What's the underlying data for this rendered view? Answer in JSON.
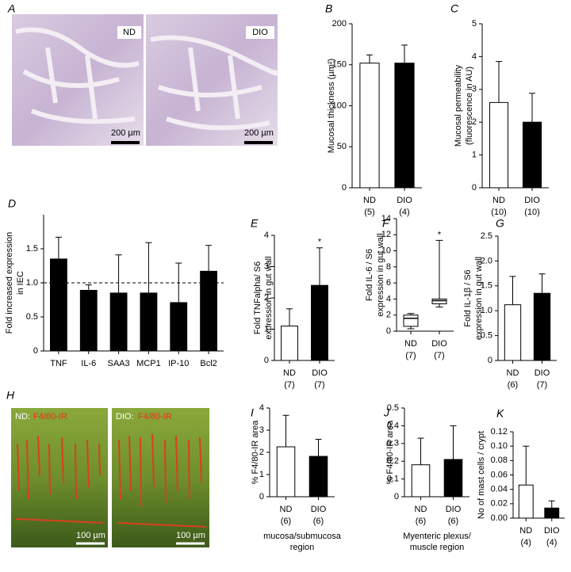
{
  "image_panels": [
    {
      "letter": "A",
      "images": [
        {
          "label": "ND",
          "scale_bar": "200 µm"
        },
        {
          "label": "DIO",
          "scale_bar": "200 µm"
        }
      ]
    },
    {
      "letter": "H",
      "images": [
        {
          "label": "ND:",
          "stain": "F4/80-IR",
          "scale_bar": "100 µm"
        },
        {
          "label": "DIO:",
          "stain": "F4/80-IR",
          "scale_bar": "100 µm"
        }
      ]
    }
  ],
  "chart_data": [
    {
      "type": "bar",
      "letter": "B",
      "ylabel": [
        "Mucosal thickness (µm²)"
      ],
      "categories": [
        "ND",
        "DIO"
      ],
      "n": [
        "(5)",
        "(4)"
      ],
      "values": [
        152,
        152
      ],
      "errors": [
        10,
        22
      ],
      "colors": [
        "#ffffff",
        "#000000"
      ],
      "ylim": [
        0,
        200
      ],
      "yticks": [
        0,
        50,
        100,
        150,
        200
      ]
    },
    {
      "type": "bar",
      "letter": "C",
      "ylabel": [
        "Mucosal permeability",
        "(fluorescence in AU)"
      ],
      "categories": [
        "ND",
        "DIO"
      ],
      "n": [
        "(10)",
        "(10)"
      ],
      "values": [
        2.6,
        2.0
      ],
      "errors": [
        1.25,
        0.88
      ],
      "colors": [
        "#ffffff",
        "#000000"
      ],
      "ylim": [
        0,
        5
      ],
      "yticks": [
        0,
        1,
        2,
        3,
        4,
        5
      ]
    },
    {
      "type": "bar",
      "letter": "D",
      "ylabel": [
        "Fold increased expression",
        "in IEC"
      ],
      "categories": [
        "TNF",
        "IL-6",
        "SAA3",
        "MCP1",
        "IP-10",
        "Bcl2"
      ],
      "values": [
        1.35,
        0.89,
        0.85,
        0.85,
        0.71,
        1.17
      ],
      "errors": [
        0.32,
        0.08,
        0.56,
        0.74,
        0.58,
        0.38
      ],
      "color": "#000000",
      "ylim": [
        0,
        2
      ],
      "yticks": [
        0,
        0.5,
        {
          "value": 1,
          "label": "1.0"
        },
        1.5
      ],
      "reference_line": 1
    },
    {
      "type": "bar",
      "letter": "E",
      "ylabel": [
        "Fold TNFalpha/ S6",
        "expression in gut wall"
      ],
      "categories": [
        "ND",
        "DIO"
      ],
      "n": [
        "(7)",
        "(7)"
      ],
      "values": [
        1.1,
        2.4
      ],
      "errors": [
        0.55,
        1.2
      ],
      "colors": [
        "#ffffff",
        "#000000"
      ],
      "ylim": [
        0,
        4
      ],
      "yticks": [
        0,
        1,
        2,
        3,
        4
      ],
      "asterisks": [
        null,
        "*"
      ]
    },
    {
      "type": "box",
      "letter": "F",
      "ylabel": [
        "Fold IL-6 / S6",
        "expression in gut wall"
      ],
      "categories": [
        "ND",
        "DIO"
      ],
      "n": [
        "(7)",
        "(7)"
      ],
      "boxes": [
        {
          "min": 0.3,
          "q1": 0.6,
          "median": 1.6,
          "q3": 2.0,
          "max": 2.2
        },
        {
          "min": 3.0,
          "q1": 3.4,
          "median": 3.8,
          "q3": 4.0,
          "max": 11.3
        }
      ],
      "ylim": [
        0,
        14
      ],
      "yticks": [
        0,
        2,
        4,
        6,
        8,
        10,
        12,
        14
      ],
      "asterisks": [
        null,
        "*"
      ]
    },
    {
      "type": "bar",
      "letter": "G",
      "ylabel": [
        "Fold IL-1β / S6",
        "expression in gut wall"
      ],
      "categories": [
        "ND",
        "DIO"
      ],
      "n": [
        "(6)",
        "(7)"
      ],
      "values": [
        1.12,
        1.35
      ],
      "errors": [
        0.57,
        0.39
      ],
      "colors": [
        "#ffffff",
        "#000000"
      ],
      "ylim": [
        0,
        2.5
      ],
      "yticks": [
        0,
        0.5,
        {
          "value": 1,
          "label": "1.0"
        },
        1.5,
        {
          "value": 2,
          "label": "2.0"
        },
        2.5
      ]
    },
    {
      "type": "bar",
      "letter": "I",
      "ylabel": [
        "% F4/80-IR area"
      ],
      "categories": [
        "ND",
        "DIO"
      ],
      "n": [
        "(6)",
        "(6)"
      ],
      "xlabel": [
        "mucosa/submucosa",
        "region"
      ],
      "values": [
        2.25,
        1.82
      ],
      "errors": [
        1.42,
        0.77
      ],
      "colors": [
        "#ffffff",
        "#000000"
      ],
      "ylim": [
        0,
        4
      ],
      "yticks": [
        0,
        1,
        2,
        3,
        4
      ]
    },
    {
      "type": "bar",
      "letter": "J",
      "ylabel": [
        "% F4/80-IR area"
      ],
      "categories": [
        "ND",
        "DIO"
      ],
      "n": [
        "(6)",
        "(6)"
      ],
      "xlabel": [
        "Myenteric plexus/",
        "muscle region"
      ],
      "values": [
        0.18,
        0.21
      ],
      "errors": [
        0.15,
        0.19
      ],
      "colors": [
        "#ffffff",
        "#000000"
      ],
      "ylim": [
        0,
        0.5
      ],
      "yticks": [
        0,
        0.1,
        0.2,
        0.3,
        0.4,
        0.5
      ]
    },
    {
      "type": "bar",
      "letter": "K",
      "ylabel": [
        "No of mast cells / crypt"
      ],
      "categories": [
        "ND",
        "DIO"
      ],
      "n": [
        "(4)",
        "(4)"
      ],
      "values": [
        0.046,
        0.014
      ],
      "errors": [
        0.054,
        0.01
      ],
      "colors": [
        "#ffffff",
        "#000000"
      ],
      "ylim": [
        0,
        0.12
      ],
      "yticks": [
        {
          "value": 0,
          "label": "0.00"
        },
        0.02,
        0.04,
        0.06,
        0.08,
        {
          "value": 0.1,
          "label": "0.10"
        },
        0.12
      ]
    }
  ]
}
